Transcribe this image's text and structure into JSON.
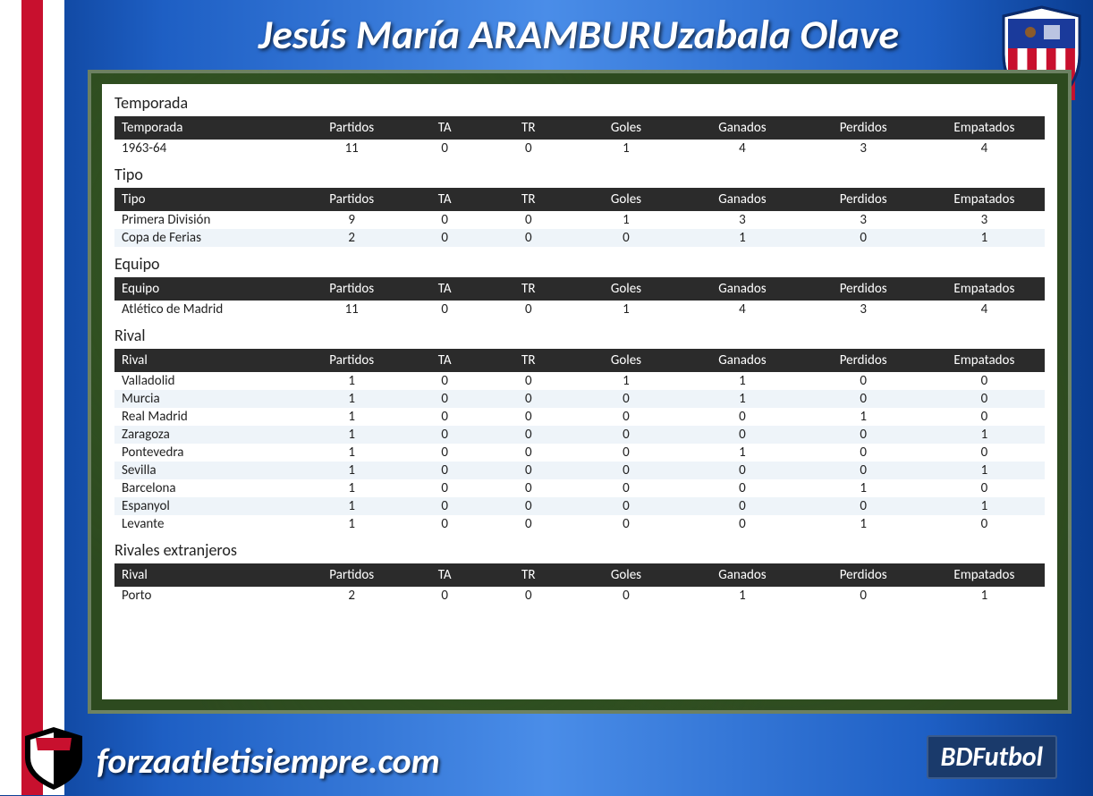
{
  "title": "Jesús María ARAMBURUzabala Olave",
  "footer_site": "forzaatletisiempre.com",
  "bdfutbol_label": "BDFutbol",
  "tables": [
    {
      "title": "Temporada",
      "columns": [
        "Temporada",
        "Partidos",
        "TA",
        "TR",
        "Goles",
        "Ganados",
        "Perdidos",
        "Empatados"
      ],
      "rows": [
        [
          "1963-64",
          "11",
          "0",
          "0",
          "1",
          "4",
          "3",
          "4"
        ]
      ]
    },
    {
      "title": "Tipo",
      "columns": [
        "Tipo",
        "Partidos",
        "TA",
        "TR",
        "Goles",
        "Ganados",
        "Perdidos",
        "Empatados"
      ],
      "rows": [
        [
          "Primera División",
          "9",
          "0",
          "0",
          "1",
          "3",
          "3",
          "3"
        ],
        [
          "Copa de Ferias",
          "2",
          "0",
          "0",
          "0",
          "1",
          "0",
          "1"
        ]
      ]
    },
    {
      "title": "Equipo",
      "columns": [
        "Equipo",
        "Partidos",
        "TA",
        "TR",
        "Goles",
        "Ganados",
        "Perdidos",
        "Empatados"
      ],
      "rows": [
        [
          "Atlético de Madrid",
          "11",
          "0",
          "0",
          "1",
          "4",
          "3",
          "4"
        ]
      ]
    },
    {
      "title": "Rival",
      "columns": [
        "Rival",
        "Partidos",
        "TA",
        "TR",
        "Goles",
        "Ganados",
        "Perdidos",
        "Empatados"
      ],
      "rows": [
        [
          "Valladolid",
          "1",
          "0",
          "0",
          "1",
          "1",
          "0",
          "0"
        ],
        [
          "Murcia",
          "1",
          "0",
          "0",
          "0",
          "1",
          "0",
          "0"
        ],
        [
          "Real Madrid",
          "1",
          "0",
          "0",
          "0",
          "0",
          "1",
          "0"
        ],
        [
          "Zaragoza",
          "1",
          "0",
          "0",
          "0",
          "0",
          "0",
          "1"
        ],
        [
          "Pontevedra",
          "1",
          "0",
          "0",
          "0",
          "1",
          "0",
          "0"
        ],
        [
          "Sevilla",
          "1",
          "0",
          "0",
          "0",
          "0",
          "0",
          "1"
        ],
        [
          "Barcelona",
          "1",
          "0",
          "0",
          "0",
          "0",
          "1",
          "0"
        ],
        [
          "Espanyol",
          "1",
          "0",
          "0",
          "0",
          "0",
          "0",
          "1"
        ],
        [
          "Levante",
          "1",
          "0",
          "0",
          "0",
          "0",
          "1",
          "0"
        ]
      ]
    },
    {
      "title": "Rivales extranjeros",
      "columns": [
        "Rival",
        "Partidos",
        "TA",
        "TR",
        "Goles",
        "Ganados",
        "Perdidos",
        "Empatados"
      ],
      "rows": [
        [
          "Porto",
          "2",
          "0",
          "0",
          "0",
          "1",
          "0",
          "1"
        ]
      ]
    }
  ],
  "col_widths": [
    "20%",
    "11%",
    "9%",
    "9%",
    "12%",
    "13%",
    "13%",
    "13%"
  ]
}
